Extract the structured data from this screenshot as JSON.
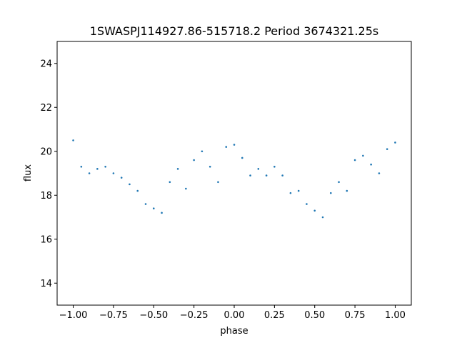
{
  "chart_data": {
    "type": "scatter",
    "title": "1SWASPJ114927.86-515718.2 Period 3674321.25s",
    "xlabel": "phase",
    "ylabel": "flux",
    "xlim": [
      -1.1,
      1.1
    ],
    "ylim": [
      13,
      25
    ],
    "xticks": [
      -1.0,
      -0.75,
      -0.5,
      -0.25,
      0.0,
      0.25,
      0.5,
      0.75,
      1.0
    ],
    "xtick_labels": [
      "−1.00",
      "−0.75",
      "−0.50",
      "−0.25",
      "0.00",
      "0.25",
      "0.50",
      "0.75",
      "1.00"
    ],
    "yticks": [
      14,
      16,
      18,
      20,
      22,
      24
    ],
    "ytick_labels": [
      "14",
      "16",
      "18",
      "20",
      "22",
      "24"
    ],
    "grid": false,
    "marker_color": "#1f77b4",
    "series": [
      {
        "x": [
          -1.0,
          -0.95,
          -0.9,
          -0.85,
          -0.8,
          -0.75,
          -0.7,
          -0.65,
          -0.6,
          -0.55,
          -0.5,
          -0.45,
          -0.4,
          -0.35,
          -0.3,
          -0.25,
          -0.2,
          -0.15,
          -0.1,
          -0.05,
          0.0,
          0.05,
          0.1,
          0.15,
          0.2,
          0.25,
          0.3,
          0.35,
          0.4,
          0.45,
          0.5,
          0.55,
          0.6,
          0.65,
          0.7,
          0.75,
          0.8,
          0.85,
          0.9,
          0.95,
          1.0
        ],
        "y": [
          20.5,
          19.3,
          19.0,
          19.2,
          19.3,
          19.0,
          18.8,
          18.5,
          18.2,
          17.6,
          17.4,
          17.2,
          18.6,
          19.2,
          18.3,
          19.6,
          20.0,
          19.3,
          18.6,
          20.2,
          20.3,
          19.7,
          18.9,
          19.2,
          18.9,
          19.3,
          18.9,
          18.1,
          18.2,
          17.6,
          17.3,
          17.0,
          18.1,
          18.6,
          18.2,
          19.6,
          19.8,
          19.4,
          19.0,
          20.1,
          20.4
        ]
      }
    ]
  }
}
